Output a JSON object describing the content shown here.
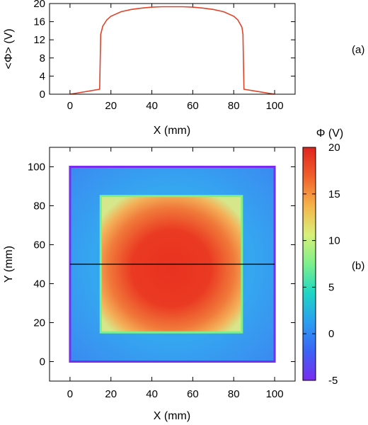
{
  "chart_data": [
    {
      "type": "line",
      "panel_label": "(a)",
      "xlabel": "X (mm)",
      "ylabel": "<Φ> (V)",
      "xlim": [
        -10,
        110
      ],
      "ylim": [
        0,
        20
      ],
      "xticks": [
        0,
        20,
        40,
        60,
        80,
        100
      ],
      "yticks": [
        0,
        4,
        8,
        12,
        16,
        20
      ],
      "grid": false,
      "series": [
        {
          "color": "#e0442a",
          "x": [
            0,
            14.5,
            15,
            16,
            18,
            20,
            25,
            30,
            35,
            40,
            45,
            50,
            55,
            60,
            65,
            70,
            75,
            80,
            82,
            84,
            84.5,
            85,
            100
          ],
          "y": [
            0,
            1.1,
            13.2,
            15.0,
            16.4,
            17.2,
            18.2,
            18.7,
            19.0,
            19.2,
            19.3,
            19.3,
            19.3,
            19.2,
            19.0,
            18.7,
            18.2,
            17.2,
            16.4,
            14.8,
            13.2,
            1.1,
            0
          ]
        }
      ]
    },
    {
      "type": "heatmap",
      "panel_label": "(b)",
      "xlabel": "X (mm)",
      "ylabel": "Y (mm)",
      "xlim": [
        -10,
        110
      ],
      "ylim": [
        -10,
        110
      ],
      "xticks": [
        0,
        20,
        40,
        60,
        80,
        100
      ],
      "yticks": [
        0,
        20,
        40,
        60,
        80,
        100
      ],
      "colorbar": {
        "label": "Φ (V)",
        "range": [
          -5,
          20
        ],
        "ticks": [
          -5,
          0,
          5,
          10,
          15,
          20
        ],
        "colors": [
          "#7a2cf0",
          "#3b63f5",
          "#2b9ef0",
          "#1fd6c4",
          "#7cf08a",
          "#d8f07a",
          "#f5b44a",
          "#f0602c",
          "#e0241e"
        ]
      },
      "regions": [
        {
          "name": "outer-electrode",
          "x": [
            0,
            100
          ],
          "y": [
            0,
            100
          ],
          "value": -5
        },
        {
          "name": "inner-electrode",
          "x": [
            15,
            84
          ],
          "y": [
            15,
            85
          ],
          "value": 10
        }
      ],
      "field": {
        "outside_value": 0,
        "interior_center_value": 19.3
      },
      "cut_line": {
        "y": 50,
        "x": [
          0,
          100
        ],
        "color": "#000000"
      }
    }
  ]
}
